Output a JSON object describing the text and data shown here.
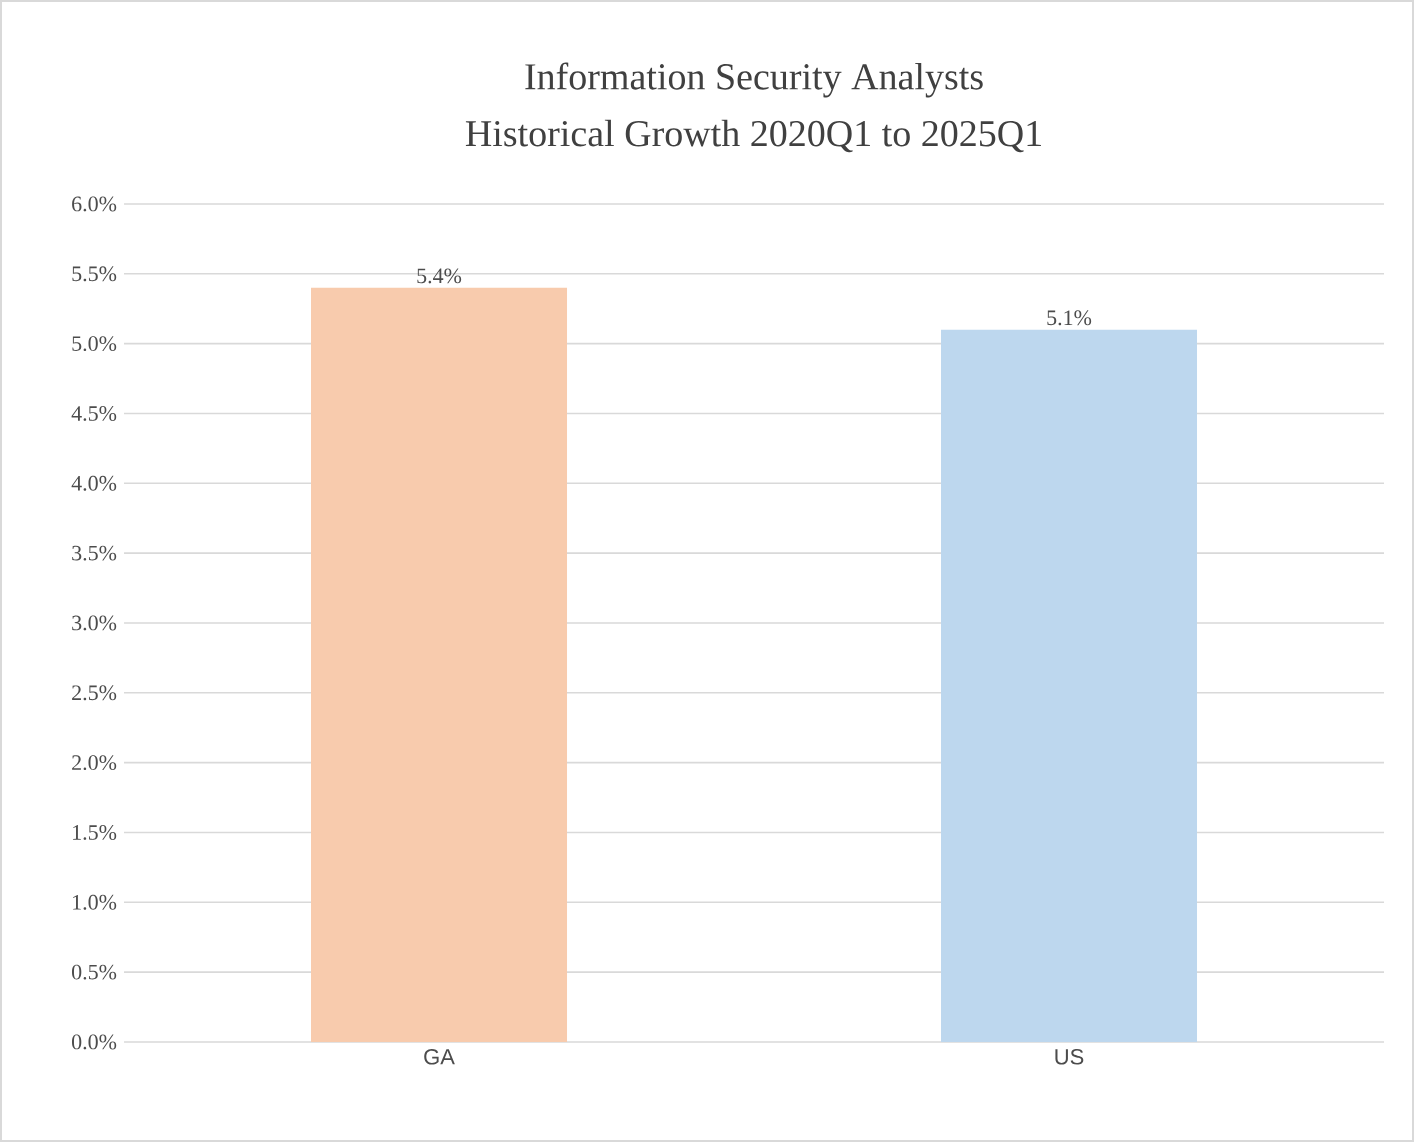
{
  "chart_data": {
    "type": "bar",
    "title": "Information Security Analysts",
    "subtitle": "Historical Growth 2020Q1 to 2025Q1",
    "categories": [
      "GA",
      "US"
    ],
    "values": [
      5.4,
      5.1
    ],
    "colors": [
      "#f8cbad",
      "#bdd7ee"
    ],
    "value_labels": [
      "5.4%",
      "5.1%"
    ],
    "ylim": [
      0,
      6
    ],
    "yticks": [
      {
        "value": 0,
        "label": "0.0%"
      },
      {
        "value": 0.5,
        "label": "0.5%"
      },
      {
        "value": 1,
        "label": "1.0%"
      },
      {
        "value": 1.5,
        "label": "1.5%"
      },
      {
        "value": 2,
        "label": "2.0%"
      },
      {
        "value": 2.5,
        "label": "2.5%"
      },
      {
        "value": 3,
        "label": "3.0%"
      },
      {
        "value": 3.5,
        "label": "3.5%"
      },
      {
        "value": 4,
        "label": "4.0%"
      },
      {
        "value": 4.5,
        "label": "4.5%"
      },
      {
        "value": 5,
        "label": "5.0%"
      },
      {
        "value": 5.5,
        "label": "5.5%"
      },
      {
        "value": 6,
        "label": "6.0%"
      }
    ],
    "grid": "y"
  }
}
